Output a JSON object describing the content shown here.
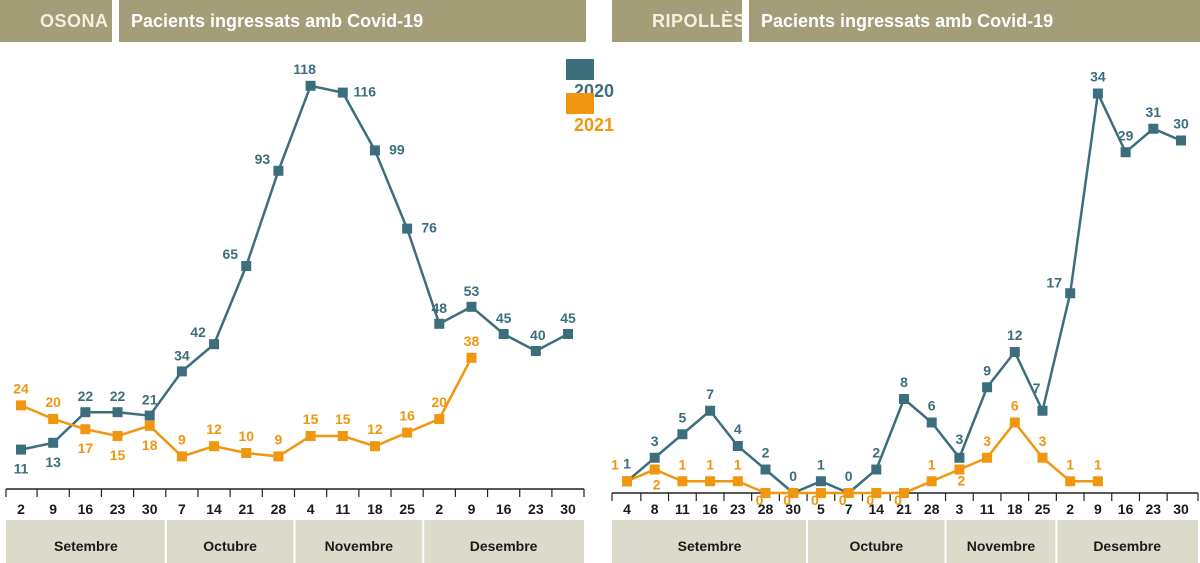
{
  "colors": {
    "s2020": "#3c6e7c",
    "s2021": "#f0960f",
    "header": "#a39d78",
    "monthband": "#dcdacb"
  },
  "legend": {
    "s2020": "2020",
    "s2021": "2021"
  },
  "chart_data": [
    {
      "type": "line",
      "region": "OSONA",
      "title": "Pacients ingressats amb Covid-19",
      "ylim": [
        0,
        125
      ],
      "x": [
        "2",
        "9",
        "16",
        "23",
        "30",
        "7",
        "14",
        "21",
        "28",
        "4",
        "11",
        "18",
        "25",
        "2",
        "9",
        "16",
        "23",
        "30"
      ],
      "months": [
        {
          "label": "Setembre",
          "span": [
            0,
            4
          ]
        },
        {
          "label": "Octubre",
          "span": [
            5,
            8
          ]
        },
        {
          "label": "Novembre",
          "span": [
            9,
            12
          ]
        },
        {
          "label": "Desembre",
          "span": [
            13,
            17
          ]
        }
      ],
      "series": [
        {
          "name": "2020",
          "values": [
            11,
            13,
            22,
            22,
            21,
            34,
            42,
            65,
            93,
            118,
            116,
            99,
            76,
            48,
            53,
            45,
            40,
            45
          ]
        },
        {
          "name": "2021",
          "values": [
            24,
            20,
            17,
            15,
            18,
            9,
            12,
            10,
            9,
            15,
            15,
            12,
            16,
            20,
            38,
            null,
            null,
            null
          ]
        }
      ]
    },
    {
      "type": "line",
      "region": "RIPOLLÈS",
      "title": "Pacients ingressats amb Covid-19",
      "ylim": [
        0,
        36
      ],
      "x": [
        "4",
        "8",
        "11",
        "16",
        "23",
        "28",
        "30",
        "5",
        "7",
        "14",
        "21",
        "28",
        "3",
        "11",
        "18",
        "25",
        "2",
        "9",
        "16",
        "23",
        "30"
      ],
      "months": [
        {
          "label": "Setembre",
          "span": [
            0,
            6
          ]
        },
        {
          "label": "Octubre",
          "span": [
            7,
            11
          ]
        },
        {
          "label": "Novembre",
          "span": [
            12,
            15
          ]
        },
        {
          "label": "Desembre",
          "span": [
            16,
            20
          ]
        }
      ],
      "series": [
        {
          "name": "2020",
          "values": [
            1,
            3,
            5,
            7,
            4,
            2,
            0,
            1,
            0,
            2,
            8,
            6,
            3,
            9,
            12,
            7,
            17,
            34,
            29,
            31,
            30
          ]
        },
        {
          "name": "2021",
          "values": [
            1,
            2,
            1,
            1,
            1,
            0,
            0,
            0,
            0,
            0,
            0,
            1,
            2,
            3,
            6,
            3,
            1,
            1,
            null,
            null,
            null
          ]
        }
      ]
    }
  ]
}
